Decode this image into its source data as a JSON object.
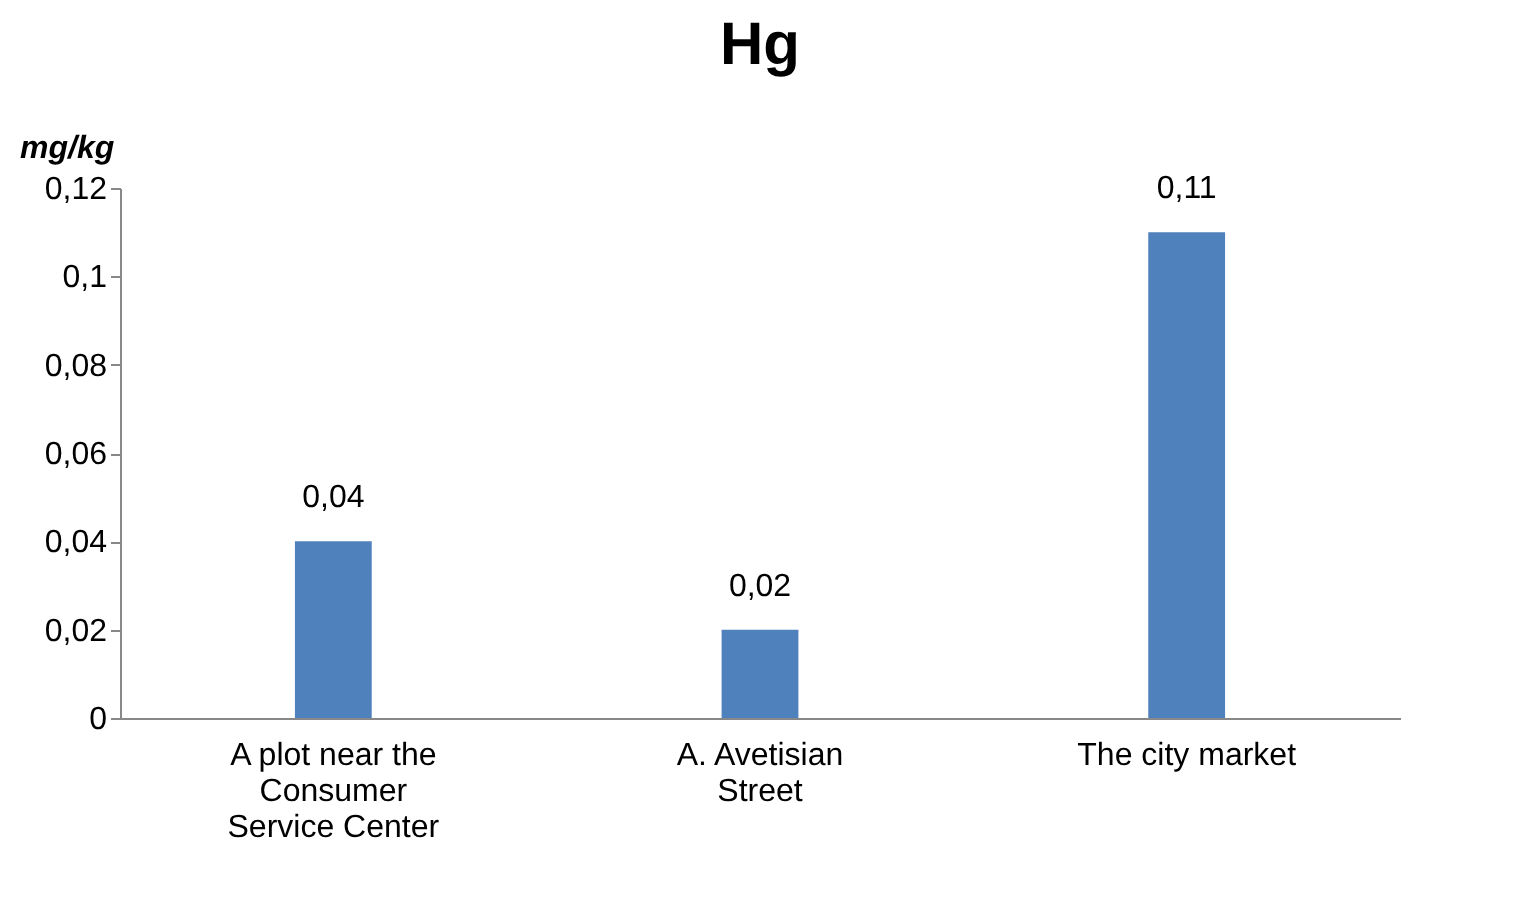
{
  "chart_data": {
    "type": "bar",
    "title": "Hg",
    "ylabel": "mg/kg",
    "categories": [
      "A plot near the Consumer Service Center",
      "A. Avetisian Street",
      "The city market"
    ],
    "values": [
      0.04,
      0.02,
      0.11
    ],
    "color": "#4f81bd",
    "value_labels": [
      "0,04",
      "0,02",
      "0,11"
    ],
    "ylim": [
      0,
      0.12
    ],
    "yticks": [
      0,
      {
        "value": 0.02,
        "label": "0,02"
      },
      {
        "value": 0.04,
        "label": "0,04"
      },
      {
        "value": 0.06,
        "label": "0,06"
      },
      {
        "value": 0.08,
        "label": "0,08"
      },
      {
        "value": 0.1,
        "label": "0,1"
      },
      {
        "value": 0.12,
        "label": "0,12"
      }
    ],
    "grid": false
  }
}
